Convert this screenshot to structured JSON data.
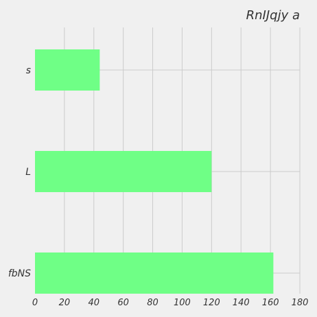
{
  "chart_data": {
    "type": "bar",
    "orientation": "horizontal",
    "title": "RnIJqjy  a",
    "categories": [
      "s",
      "L",
      "fbNS"
    ],
    "values": [
      44,
      120,
      162
    ],
    "xlim": [
      0,
      180
    ],
    "xticks": [
      0,
      20,
      40,
      60,
      80,
      100,
      120,
      140,
      160,
      180
    ],
    "xlabel": "",
    "ylabel": "",
    "grid": true,
    "bar_color": "#6fff86",
    "background": "#f0f0f0",
    "grid_color": "#cbcbcb",
    "text_color": "#333333"
  }
}
